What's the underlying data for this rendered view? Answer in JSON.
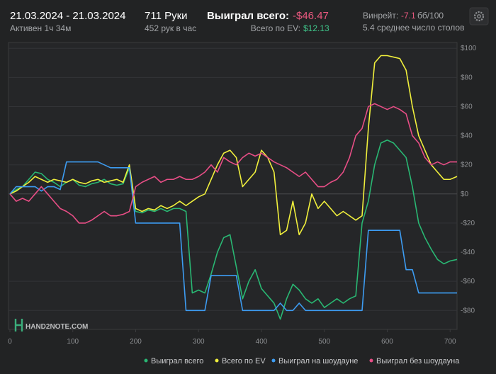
{
  "header": {
    "date_range": "21.03.2024 - 21.03.2024",
    "active": "Активен 1ч 34м",
    "hands": "711 Руки",
    "hands_per_hour": "452 рук в час",
    "won_total_label": "Выиграл всего:",
    "won_total_value": "-$46.47",
    "ev_label": "Всего по EV:",
    "ev_value": "$12.13",
    "winrate_label": "Винрейт:",
    "winrate_value": "-7.1",
    "winrate_unit": "бб/100",
    "tables": "5.4 среднее число столов",
    "watermark": "HAND2NOTE.COM"
  },
  "chart_data": {
    "type": "line",
    "x": [
      0,
      10,
      20,
      30,
      40,
      50,
      60,
      70,
      80,
      90,
      100,
      110,
      120,
      130,
      140,
      150,
      160,
      170,
      180,
      190,
      200,
      210,
      220,
      230,
      240,
      250,
      260,
      270,
      280,
      290,
      300,
      310,
      320,
      330,
      340,
      350,
      360,
      370,
      380,
      390,
      400,
      410,
      420,
      430,
      440,
      450,
      460,
      470,
      480,
      490,
      500,
      510,
      520,
      530,
      540,
      550,
      560,
      570,
      580,
      590,
      600,
      610,
      620,
      630,
      640,
      650,
      660,
      670,
      680,
      690,
      700,
      711
    ],
    "series": [
      {
        "name": "Выиграл всего",
        "color": "#29b773",
        "values": [
          0,
          3,
          5,
          10,
          15,
          14,
          10,
          8,
          5,
          8,
          10,
          6,
          5,
          7,
          8,
          10,
          7,
          6,
          7,
          18,
          -12,
          -13,
          -11,
          -12,
          -10,
          -12,
          -10,
          -10,
          -12,
          -68,
          -66,
          -68,
          -55,
          -40,
          -30,
          -28,
          -50,
          -72,
          -60,
          -52,
          -65,
          -70,
          -75,
          -86,
          -72,
          -62,
          -66,
          -72,
          -75,
          -72,
          -78,
          -75,
          -72,
          -75,
          -72,
          -70,
          -20,
          -5,
          20,
          35,
          37,
          35,
          30,
          25,
          5,
          -20,
          -30,
          -38,
          -45,
          -48,
          -46,
          -45
        ]
      },
      {
        "name": "Всего по EV",
        "color": "#f0ef3c",
        "values": [
          0,
          2,
          5,
          8,
          12,
          10,
          8,
          10,
          9,
          8,
          10,
          8,
          7,
          9,
          10,
          8,
          9,
          10,
          8,
          20,
          -10,
          -12,
          -10,
          -11,
          -8,
          -10,
          -8,
          -5,
          -8,
          -5,
          -2,
          0,
          10,
          20,
          28,
          30,
          25,
          5,
          10,
          15,
          30,
          25,
          15,
          -28,
          -25,
          -5,
          -28,
          -20,
          0,
          -10,
          -5,
          -10,
          -15,
          -12,
          -15,
          -18,
          -15,
          45,
          90,
          95,
          95,
          94,
          93,
          85,
          60,
          40,
          30,
          20,
          15,
          10,
          10,
          12
        ]
      },
      {
        "name": "Выиграл на шоудауне",
        "color": "#3d9cf2",
        "values": [
          0,
          5,
          5,
          5,
          5,
          2,
          5,
          5,
          3,
          22,
          22,
          22,
          22,
          22,
          22,
          20,
          18,
          18,
          18,
          18,
          -20,
          -20,
          -20,
          -20,
          -20,
          -20,
          -20,
          -20,
          -80,
          -80,
          -80,
          -80,
          -56,
          -56,
          -56,
          -56,
          -56,
          -80,
          -80,
          -80,
          -80,
          -80,
          -80,
          -75,
          -80,
          -80,
          -75,
          -80,
          -80,
          -80,
          -80,
          -80,
          -80,
          -80,
          -80,
          -80,
          -80,
          -25,
          -25,
          -25,
          -25,
          -25,
          -25,
          -52,
          -52,
          -68,
          -68,
          -68,
          -68,
          -68,
          -68,
          -68
        ]
      },
      {
        "name": "Выиграл без шоудауна",
        "color": "#e84e86",
        "values": [
          0,
          -5,
          -3,
          -5,
          0,
          5,
          0,
          -5,
          -10,
          -12,
          -15,
          -20,
          -20,
          -18,
          -15,
          -12,
          -15,
          -15,
          -14,
          -12,
          5,
          8,
          10,
          12,
          8,
          10,
          10,
          12,
          10,
          10,
          12,
          15,
          20,
          15,
          25,
          22,
          20,
          25,
          28,
          26,
          28,
          25,
          22,
          20,
          18,
          15,
          12,
          15,
          10,
          5,
          5,
          8,
          10,
          15,
          25,
          40,
          45,
          60,
          62,
          60,
          58,
          60,
          58,
          55,
          40,
          35,
          25,
          20,
          22,
          20,
          22,
          22
        ]
      }
    ],
    "xlim": [
      0,
      711
    ],
    "ylim": [
      -93,
      104
    ],
    "xticks": [
      0,
      100,
      200,
      300,
      400,
      500,
      600,
      700
    ],
    "yticks": [
      {
        "value": 100,
        "label": "$100"
      },
      {
        "value": 80,
        "label": "$80"
      },
      {
        "value": 60,
        "label": "$60"
      },
      {
        "value": 40,
        "label": "$40"
      },
      {
        "value": 20,
        "label": "$20"
      },
      {
        "value": 0,
        "label": "$0"
      },
      {
        "value": -20,
        "label": "-$20"
      },
      {
        "value": -40,
        "label": "-$40"
      },
      {
        "value": -60,
        "label": "-$60"
      },
      {
        "value": -80,
        "label": "-$80"
      }
    ],
    "grid": true
  }
}
